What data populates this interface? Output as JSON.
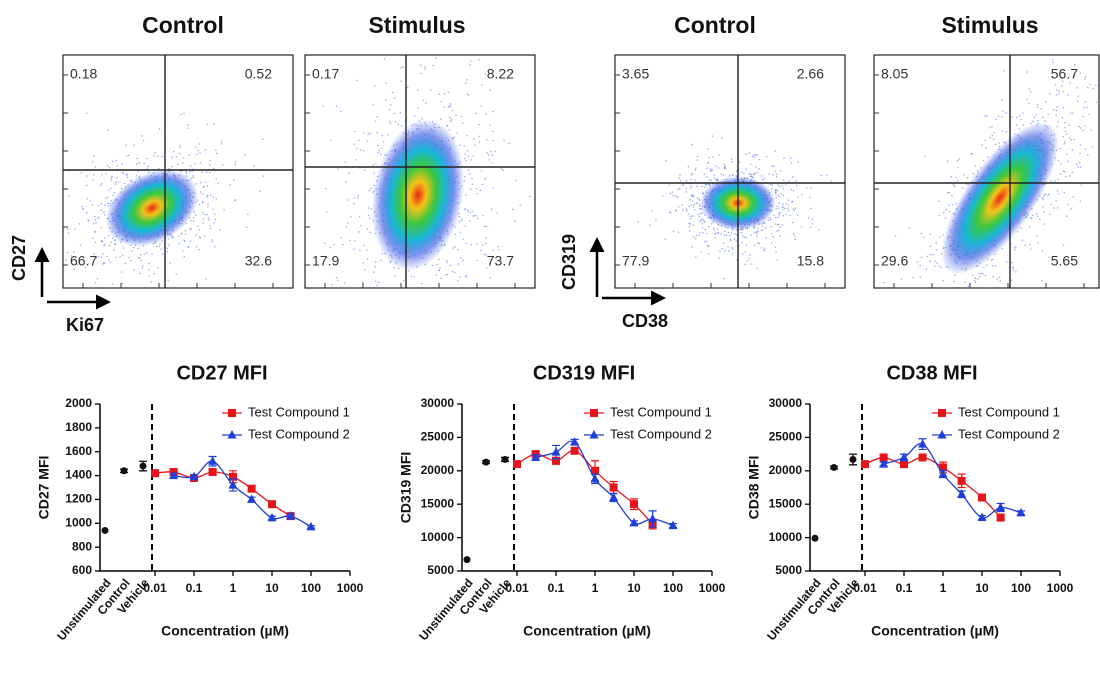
{
  "flow_panels": [
    {
      "title": "Control",
      "quadrants": [
        0.18,
        0.52,
        66.7,
        32.6
      ]
    },
    {
      "title": "Stimulus",
      "quadrants": [
        0.17,
        8.22,
        17.9,
        73.7
      ]
    },
    {
      "title": "Control",
      "quadrants": [
        3.65,
        2.66,
        77.9,
        15.8
      ]
    },
    {
      "title": "Stimulus",
      "quadrants": [
        8.05,
        56.7,
        29.6,
        5.65
      ]
    }
  ],
  "flow_axes": [
    {
      "y": "CD27",
      "x": "Ki67"
    },
    {
      "y": "CD319",
      "x": "CD38"
    }
  ],
  "chart_data": [
    {
      "type": "dose-response",
      "title": "CD27 MFI",
      "ylabel": "CD27 MFI",
      "xlabel": "Concentration (µM)",
      "xscale": "log",
      "xlim": [
        0.01,
        1000
      ],
      "xticks": [
        0.01,
        0.1,
        1,
        10,
        100,
        1000
      ],
      "ylim": [
        600,
        2000
      ],
      "yticks": [
        600,
        800,
        1000,
        1200,
        1400,
        1600,
        1800,
        2000
      ],
      "controls": {
        "categories": [
          "Unstimulated",
          "Control",
          "Vehicle"
        ],
        "values": [
          940,
          1440,
          1480
        ],
        "errors": [
          0,
          15,
          40
        ],
        "color": "#111111"
      },
      "series": [
        {
          "name": "Test Compound 1",
          "color": "#e8141b",
          "marker": "square",
          "x": [
            0.01,
            0.03,
            0.1,
            0.3,
            1,
            3,
            10,
            30
          ],
          "values": [
            1420,
            1430,
            1380,
            1430,
            1390,
            1290,
            1160,
            1060
          ],
          "errors": [
            15,
            20,
            25,
            20,
            50,
            20,
            25,
            20
          ]
        },
        {
          "name": "Test Compound 2",
          "color": "#1f3fd6",
          "marker": "triangle",
          "x": [
            0.03,
            0.1,
            0.3,
            1,
            3,
            10,
            30,
            100
          ],
          "values": [
            1400,
            1390,
            1520,
            1320,
            1200,
            1045,
            1060,
            970
          ],
          "errors": [
            20,
            15,
            40,
            50,
            20,
            15,
            20,
            10
          ]
        }
      ]
    },
    {
      "type": "dose-response",
      "title": "CD319 MFI",
      "ylabel": "CD319 MFI",
      "xlabel": "Concentration (µM)",
      "xscale": "log",
      "xlim": [
        0.01,
        1000
      ],
      "xticks": [
        0.01,
        0.1,
        1,
        10,
        100,
        1000
      ],
      "ylim": [
        5000,
        30000
      ],
      "yticks": [
        5000,
        10000,
        15000,
        20000,
        25000,
        30000
      ],
      "controls": {
        "categories": [
          "Unstimulated",
          "Control",
          "Vehicle"
        ],
        "values": [
          6700,
          21300,
          21700
        ],
        "errors": [
          0,
          200,
          300
        ],
        "color": "#111111"
      },
      "series": [
        {
          "name": "Test Compound 1",
          "color": "#e8141b",
          "marker": "square",
          "x": [
            0.01,
            0.03,
            0.1,
            0.3,
            1,
            3,
            10,
            30
          ],
          "values": [
            21000,
            22500,
            21500,
            23000,
            20000,
            17500,
            15000,
            12000
          ],
          "errors": [
            300,
            400,
            500,
            400,
            1500,
            900,
            800,
            700
          ]
        },
        {
          "name": "Test Compound 2",
          "color": "#1f3fd6",
          "marker": "triangle",
          "x": [
            0.03,
            0.1,
            0.3,
            1,
            3,
            10,
            30,
            100
          ],
          "values": [
            22000,
            22800,
            24300,
            18800,
            16000,
            12200,
            12800,
            11800
          ],
          "errors": [
            400,
            1000,
            400,
            700,
            600,
            300,
            1200,
            300
          ]
        }
      ]
    },
    {
      "type": "dose-response",
      "title": "CD38 MFI",
      "ylabel": "CD38 MFI",
      "xlabel": "Concentration (µM)",
      "xscale": "log",
      "xlim": [
        0.01,
        1000
      ],
      "xticks": [
        0.01,
        0.1,
        1,
        10,
        100,
        1000
      ],
      "ylim": [
        5000,
        30000
      ],
      "yticks": [
        5000,
        10000,
        15000,
        20000,
        25000,
        30000
      ],
      "controls": {
        "categories": [
          "Unstimulated",
          "Control",
          "Vehicle"
        ],
        "values": [
          9900,
          20500,
          21700
        ],
        "errors": [
          0,
          200,
          800
        ],
        "color": "#111111"
      },
      "series": [
        {
          "name": "Test Compound 1",
          "color": "#e8141b",
          "marker": "square",
          "x": [
            0.01,
            0.03,
            0.1,
            0.3,
            1,
            3,
            10,
            30
          ],
          "values": [
            21000,
            22000,
            21000,
            22000,
            20500,
            18500,
            16000,
            13000
          ],
          "errors": [
            300,
            300,
            400,
            300,
            800,
            1000,
            500,
            500
          ]
        },
        {
          "name": "Test Compound 2",
          "color": "#1f3fd6",
          "marker": "triangle",
          "x": [
            0.03,
            0.1,
            0.3,
            1,
            3,
            10,
            30,
            100
          ],
          "values": [
            21000,
            22000,
            24000,
            19500,
            16500,
            13000,
            14500,
            13700
          ],
          "errors": [
            300,
            500,
            800,
            500,
            500,
            300,
            600,
            300
          ]
        }
      ]
    }
  ]
}
